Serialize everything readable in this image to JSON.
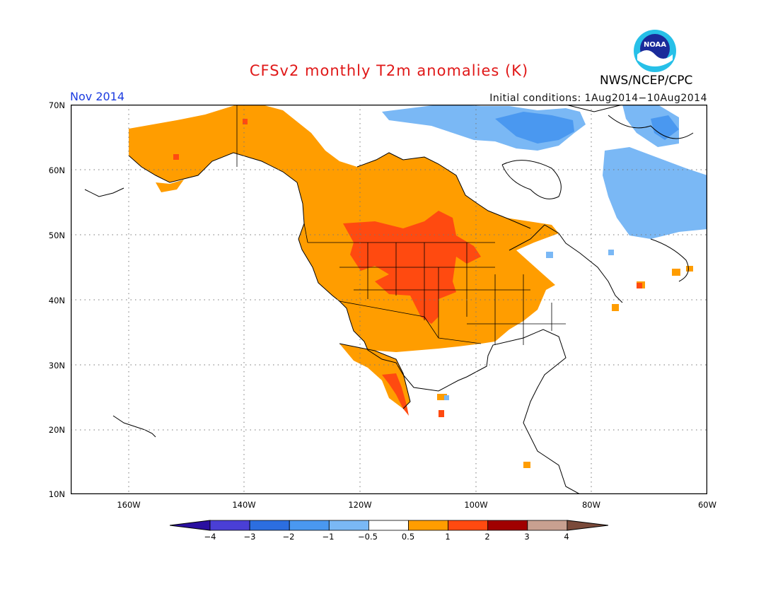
{
  "title": "CFSv2 monthly T2m anomalies (K)",
  "period": "Nov 2014",
  "initial_conditions": "Initial conditions: 1Aug2014−10Aug2014",
  "agency": "NWS/NCEP/CPC",
  "logo": {
    "text": "NOAA"
  },
  "map": {
    "lat_labels": [
      "70N",
      "60N",
      "50N",
      "40N",
      "30N",
      "20N",
      "10N"
    ],
    "lon_labels": [
      "160W",
      "140W",
      "120W",
      "100W",
      "80W",
      "60W"
    ],
    "lon_range": [
      -170,
      -60
    ],
    "lat_range": [
      10,
      70
    ],
    "grid": "dotted",
    "anomaly_regions": [
      {
        "region": "Alaska",
        "category": "0.5 to 1"
      },
      {
        "region": "Western Canada and western/central US",
        "category": "0.5 to 1"
      },
      {
        "region": "Northern Rockies and northern Plains",
        "category": "1 to 2"
      },
      {
        "region": "Baja California",
        "category": "1 to 2"
      },
      {
        "region": "Northern Canada / Arctic islands",
        "category": "-1 to -0.5"
      },
      {
        "region": "Labrador / Quebec",
        "category": "-1 to -0.5"
      }
    ]
  },
  "colorbar": {
    "labels": [
      "−4",
      "−3",
      "−2",
      "−1",
      "−0.5",
      "0.5",
      "1",
      "2",
      "3",
      "4"
    ],
    "colors": [
      "#2a10a0",
      "#4a3fd6",
      "#2c6ee0",
      "#4a98f0",
      "#7ab8f5",
      "#ffffff",
      "#ff9d00",
      "#ff4a10",
      "#a00000",
      "#c8a090",
      "#7a4a3a"
    ]
  }
}
